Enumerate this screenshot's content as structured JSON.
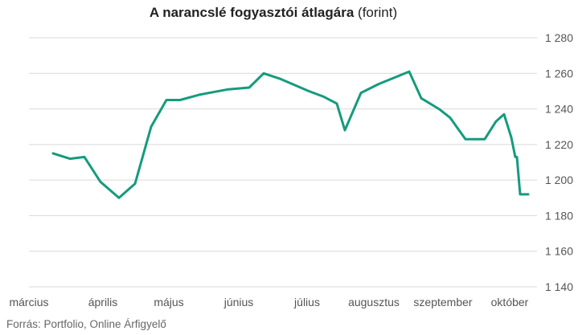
{
  "chart_data": {
    "type": "line",
    "title": "A narancslé fogyasztói átlagára",
    "title_unit": "(forint)",
    "source": "Forrás: Portfolio, Online Árfigyelő",
    "ylim": [
      1140,
      1285
    ],
    "yticks": [
      1140,
      1160,
      1180,
      1200,
      1220,
      1240,
      1260,
      1280
    ],
    "ytick_labels": [
      "1 140",
      "1 160",
      "1 180",
      "1 200",
      "1 220",
      "1 240",
      "1 260",
      "1 280"
    ],
    "xlim": [
      0,
      651
    ],
    "x_ticks": [
      {
        "label": "március",
        "x": 0
      },
      {
        "label": "április",
        "x": 92
      },
      {
        "label": "május",
        "x": 174
      },
      {
        "label": "június",
        "x": 261
      },
      {
        "label": "július",
        "x": 346
      },
      {
        "label": "augusztus",
        "x": 429
      },
      {
        "label": "szeptember",
        "x": 515
      },
      {
        "label": "október",
        "x": 598
      }
    ],
    "grid": true,
    "color": "#159b7d",
    "series": [
      {
        "points": [
          [
            30,
            1215
          ],
          [
            51,
            1212
          ],
          [
            69,
            1213
          ],
          [
            89,
            1199
          ],
          [
            112,
            1190
          ],
          [
            132,
            1198
          ],
          [
            152,
            1230
          ],
          [
            171,
            1245
          ],
          [
            188,
            1245
          ],
          [
            212,
            1248
          ],
          [
            248,
            1251
          ],
          [
            274,
            1252
          ],
          [
            292,
            1260
          ],
          [
            312,
            1257
          ],
          [
            348,
            1250
          ],
          [
            366,
            1247
          ],
          [
            383,
            1243
          ],
          [
            393,
            1228
          ],
          [
            413,
            1249
          ],
          [
            435,
            1254
          ],
          [
            473,
            1261
          ],
          [
            488,
            1246
          ],
          [
            510,
            1240
          ],
          [
            524,
            1235
          ],
          [
            543,
            1223
          ],
          [
            567,
            1223
          ],
          [
            581,
            1233
          ],
          [
            591,
            1237
          ],
          [
            600,
            1224
          ],
          [
            605,
            1213
          ],
          [
            607,
            1213
          ],
          [
            611,
            1192
          ],
          [
            621,
            1192
          ]
        ]
      }
    ]
  }
}
